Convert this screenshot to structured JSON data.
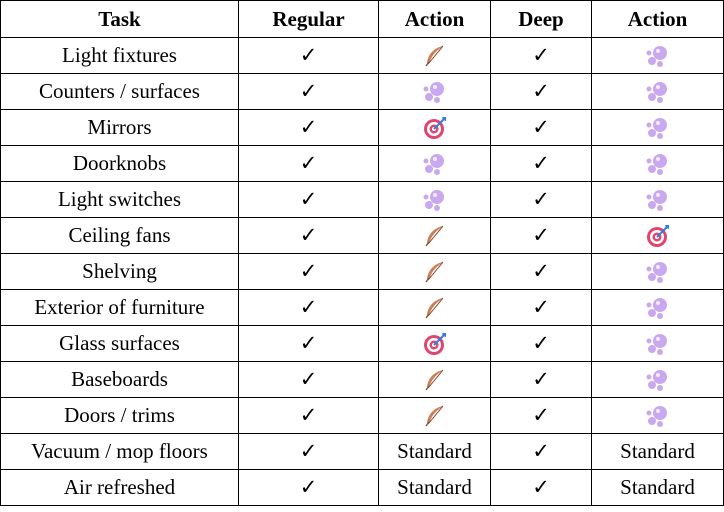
{
  "headers": {
    "task": "Task",
    "regular": "Regular",
    "action1": "Action",
    "deep": "Deep",
    "action2": "Action"
  },
  "check_symbol": "✓",
  "rows": [
    {
      "task": "Light fixtures",
      "regular": "✓",
      "action1": "feather-icon",
      "deep": "✓",
      "action2": "bubbles-icon"
    },
    {
      "task": "Counters / surfaces",
      "regular": "✓",
      "action1": "bubbles-icon",
      "deep": "✓",
      "action2": "bubbles-icon"
    },
    {
      "task": "Mirrors",
      "regular": "✓",
      "action1": "target-icon",
      "deep": "✓",
      "action2": "bubbles-icon"
    },
    {
      "task": "Doorknobs",
      "regular": "✓",
      "action1": "bubbles-icon",
      "deep": "✓",
      "action2": "bubbles-icon"
    },
    {
      "task": "Light switches",
      "regular": "✓",
      "action1": "bubbles-icon",
      "deep": "✓",
      "action2": "bubbles-icon"
    },
    {
      "task": "Ceiling fans",
      "regular": "✓",
      "action1": "feather-icon",
      "deep": "✓",
      "action2": "target-icon"
    },
    {
      "task": "Shelving",
      "regular": "✓",
      "action1": "feather-icon",
      "deep": "✓",
      "action2": "bubbles-icon"
    },
    {
      "task": "Exterior of furniture",
      "regular": "✓",
      "action1": "feather-icon",
      "deep": "✓",
      "action2": "bubbles-icon"
    },
    {
      "task": "Glass surfaces",
      "regular": "✓",
      "action1": "target-icon",
      "deep": "✓",
      "action2": "bubbles-icon"
    },
    {
      "task": "Baseboards",
      "regular": "✓",
      "action1": "feather-icon",
      "deep": "✓",
      "action2": "bubbles-icon"
    },
    {
      "task": "Doors / trims",
      "regular": "✓",
      "action1": "feather-icon",
      "deep": "✓",
      "action2": "bubbles-icon"
    },
    {
      "task": "Vacuum / mop floors",
      "regular": "✓",
      "action1": "Standard",
      "deep": "✓",
      "action2": "Standard"
    },
    {
      "task": "Air refreshed",
      "regular": "✓",
      "action1": "Standard",
      "deep": "✓",
      "action2": "Standard"
    }
  ],
  "colors": {
    "feather": "#c9805a",
    "bubbles": "#c9a8f0",
    "target_ring": "#e0456e",
    "dart": "#2f7fe0"
  }
}
